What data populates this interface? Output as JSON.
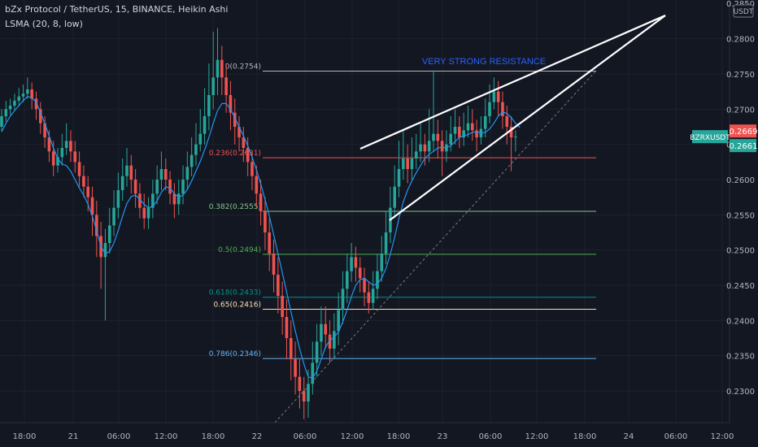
{
  "header": {
    "title": "bZx Protocol / TetherUS, 15, BINANCE, Heikin Ashi",
    "indicator": "LSMA (20, 8, low)"
  },
  "colors": {
    "background": "#131722",
    "grid": "#1e222d",
    "text": "#b2b5be",
    "up": "#26a69a",
    "down": "#ef5350",
    "lsma": "#2196f3",
    "trendline": "#ffffff",
    "annotation": "#2962ff",
    "current_price_badge": "#ef5350",
    "symbol_badge": "#26a69a"
  },
  "chart_data": {
    "type": "candlestick",
    "ylim": [
      0.2255,
      0.2855
    ],
    "currency_label": "USDT",
    "y_ticks": [
      0.23,
      0.235,
      0.24,
      0.245,
      0.25,
      0.255,
      0.26,
      0.265,
      0.27,
      0.275,
      0.28
    ],
    "top_tick": "0.2850",
    "x_ticks": [
      "18:00",
      "21",
      "06:00",
      "12:00",
      "18:00",
      "22",
      "06:00",
      "12:00",
      "18:00",
      "23",
      "06:00",
      "12:00",
      "18:00",
      "24",
      "06:00",
      "12:00"
    ],
    "fib_levels": [
      {
        "label": "0(0.2754)",
        "value": 0.2754,
        "color": "#b2b5be"
      },
      {
        "label": "0.236(0.2631)",
        "value": 0.2631,
        "color": "#ef5350"
      },
      {
        "label": "0.382(0.2555)",
        "value": 0.2555,
        "color": "#81c784"
      },
      {
        "label": "0.5(0.2494)",
        "value": 0.2494,
        "color": "#4caf50"
      },
      {
        "label": "0.618(0.2433)",
        "value": 0.2433,
        "color": "#009688"
      },
      {
        "label": "0.65(0.2416)",
        "value": 0.2416,
        "color": "#ffe0b2"
      },
      {
        "label": "0.786(0.2346)",
        "value": 0.2346,
        "color": "#64b5f6"
      }
    ],
    "annotation": "VERY STRONG RESISTANCE",
    "symbol": "BZRXUSDT",
    "last_price": "0.2661",
    "alt_price": "0.2669",
    "candles": [
      {
        "o": 0.2675,
        "c": 0.269,
        "h": 0.27,
        "l": 0.2668
      },
      {
        "o": 0.269,
        "c": 0.27,
        "h": 0.2712,
        "l": 0.2682
      },
      {
        "o": 0.27,
        "c": 0.2705,
        "h": 0.2715,
        "l": 0.2692
      },
      {
        "o": 0.2705,
        "c": 0.2712,
        "h": 0.2722,
        "l": 0.2698
      },
      {
        "o": 0.2712,
        "c": 0.2718,
        "h": 0.273,
        "l": 0.2704
      },
      {
        "o": 0.2718,
        "c": 0.2722,
        "h": 0.2735,
        "l": 0.271
      },
      {
        "o": 0.2722,
        "c": 0.2728,
        "h": 0.2745,
        "l": 0.2715
      },
      {
        "o": 0.2728,
        "c": 0.2715,
        "h": 0.2738,
        "l": 0.27
      },
      {
        "o": 0.2715,
        "c": 0.27,
        "h": 0.2725,
        "l": 0.2685
      },
      {
        "o": 0.27,
        "c": 0.268,
        "h": 0.271,
        "l": 0.2665
      },
      {
        "o": 0.268,
        "c": 0.266,
        "h": 0.269,
        "l": 0.2645
      },
      {
        "o": 0.266,
        "c": 0.264,
        "h": 0.267,
        "l": 0.2625
      },
      {
        "o": 0.264,
        "c": 0.262,
        "h": 0.2655,
        "l": 0.2605
      },
      {
        "o": 0.262,
        "c": 0.2632,
        "h": 0.2645,
        "l": 0.261
      },
      {
        "o": 0.2632,
        "c": 0.2645,
        "h": 0.2665,
        "l": 0.262
      },
      {
        "o": 0.2645,
        "c": 0.2655,
        "h": 0.268,
        "l": 0.2635
      },
      {
        "o": 0.2655,
        "c": 0.264,
        "h": 0.267,
        "l": 0.2625
      },
      {
        "o": 0.264,
        "c": 0.2625,
        "h": 0.2655,
        "l": 0.261
      },
      {
        "o": 0.2625,
        "c": 0.2605,
        "h": 0.264,
        "l": 0.259
      },
      {
        "o": 0.2605,
        "c": 0.259,
        "h": 0.262,
        "l": 0.2575
      },
      {
        "o": 0.259,
        "c": 0.2575,
        "h": 0.2605,
        "l": 0.2555
      },
      {
        "o": 0.2575,
        "c": 0.255,
        "h": 0.259,
        "l": 0.252
      },
      {
        "o": 0.255,
        "c": 0.252,
        "h": 0.257,
        "l": 0.249
      },
      {
        "o": 0.252,
        "c": 0.249,
        "h": 0.254,
        "l": 0.2445
      },
      {
        "o": 0.249,
        "c": 0.251,
        "h": 0.253,
        "l": 0.24
      },
      {
        "o": 0.251,
        "c": 0.2535,
        "h": 0.256,
        "l": 0.2495
      },
      {
        "o": 0.2535,
        "c": 0.256,
        "h": 0.2585,
        "l": 0.252
      },
      {
        "o": 0.256,
        "c": 0.2585,
        "h": 0.261,
        "l": 0.2545
      },
      {
        "o": 0.2585,
        "c": 0.2605,
        "h": 0.263,
        "l": 0.257
      },
      {
        "o": 0.2605,
        "c": 0.262,
        "h": 0.2645,
        "l": 0.259
      },
      {
        "o": 0.262,
        "c": 0.26,
        "h": 0.2635,
        "l": 0.258
      },
      {
        "o": 0.26,
        "c": 0.258,
        "h": 0.2615,
        "l": 0.256
      },
      {
        "o": 0.258,
        "c": 0.256,
        "h": 0.2595,
        "l": 0.2545
      },
      {
        "o": 0.256,
        "c": 0.2545,
        "h": 0.258,
        "l": 0.253
      },
      {
        "o": 0.2545,
        "c": 0.256,
        "h": 0.2575,
        "l": 0.253
      },
      {
        "o": 0.256,
        "c": 0.258,
        "h": 0.26,
        "l": 0.2545
      },
      {
        "o": 0.258,
        "c": 0.26,
        "h": 0.262,
        "l": 0.2565
      },
      {
        "o": 0.26,
        "c": 0.2615,
        "h": 0.264,
        "l": 0.2585
      },
      {
        "o": 0.2615,
        "c": 0.26,
        "h": 0.263,
        "l": 0.2585
      },
      {
        "o": 0.26,
        "c": 0.258,
        "h": 0.2612,
        "l": 0.2565
      },
      {
        "o": 0.258,
        "c": 0.2565,
        "h": 0.2595,
        "l": 0.2545
      },
      {
        "o": 0.2565,
        "c": 0.258,
        "h": 0.26,
        "l": 0.255
      },
      {
        "o": 0.258,
        "c": 0.26,
        "h": 0.262,
        "l": 0.2565
      },
      {
        "o": 0.26,
        "c": 0.2618,
        "h": 0.264,
        "l": 0.2585
      },
      {
        "o": 0.2618,
        "c": 0.2635,
        "h": 0.266,
        "l": 0.2605
      },
      {
        "o": 0.2635,
        "c": 0.265,
        "h": 0.268,
        "l": 0.262
      },
      {
        "o": 0.265,
        "c": 0.2665,
        "h": 0.27,
        "l": 0.264
      },
      {
        "o": 0.2665,
        "c": 0.269,
        "h": 0.273,
        "l": 0.265
      },
      {
        "o": 0.269,
        "c": 0.272,
        "h": 0.2765,
        "l": 0.267
      },
      {
        "o": 0.272,
        "c": 0.2745,
        "h": 0.281,
        "l": 0.27
      },
      {
        "o": 0.2745,
        "c": 0.277,
        "h": 0.2815,
        "l": 0.272
      },
      {
        "o": 0.277,
        "c": 0.2745,
        "h": 0.279,
        "l": 0.272
      },
      {
        "o": 0.2745,
        "c": 0.272,
        "h": 0.2765,
        "l": 0.2695
      },
      {
        "o": 0.272,
        "c": 0.2695,
        "h": 0.274,
        "l": 0.267
      },
      {
        "o": 0.2695,
        "c": 0.2675,
        "h": 0.2715,
        "l": 0.265
      },
      {
        "o": 0.2675,
        "c": 0.266,
        "h": 0.269,
        "l": 0.264
      },
      {
        "o": 0.266,
        "c": 0.2645,
        "h": 0.2675,
        "l": 0.2625
      },
      {
        "o": 0.2645,
        "c": 0.2625,
        "h": 0.266,
        "l": 0.2605
      },
      {
        "o": 0.2625,
        "c": 0.2605,
        "h": 0.264,
        "l": 0.2585
      },
      {
        "o": 0.2605,
        "c": 0.258,
        "h": 0.262,
        "l": 0.256
      },
      {
        "o": 0.258,
        "c": 0.2555,
        "h": 0.26,
        "l": 0.2535
      },
      {
        "o": 0.2555,
        "c": 0.2525,
        "h": 0.2575,
        "l": 0.25
      },
      {
        "o": 0.2525,
        "c": 0.2495,
        "h": 0.2545,
        "l": 0.247
      },
      {
        "o": 0.2495,
        "c": 0.2465,
        "h": 0.2515,
        "l": 0.244
      },
      {
        "o": 0.2465,
        "c": 0.2435,
        "h": 0.249,
        "l": 0.241
      },
      {
        "o": 0.2435,
        "c": 0.2405,
        "h": 0.2455,
        "l": 0.238
      },
      {
        "o": 0.2405,
        "c": 0.2375,
        "h": 0.243,
        "l": 0.2345
      },
      {
        "o": 0.2375,
        "c": 0.2345,
        "h": 0.24,
        "l": 0.2315
      },
      {
        "o": 0.2345,
        "c": 0.232,
        "h": 0.237,
        "l": 0.2295
      },
      {
        "o": 0.232,
        "c": 0.23,
        "h": 0.2345,
        "l": 0.2275
      },
      {
        "o": 0.23,
        "c": 0.2285,
        "h": 0.232,
        "l": 0.226
      },
      {
        "o": 0.2285,
        "c": 0.231,
        "h": 0.233,
        "l": 0.2262
      },
      {
        "o": 0.231,
        "c": 0.234,
        "h": 0.237,
        "l": 0.2295
      },
      {
        "o": 0.234,
        "c": 0.237,
        "h": 0.2395,
        "l": 0.232
      },
      {
        "o": 0.237,
        "c": 0.2395,
        "h": 0.242,
        "l": 0.235
      },
      {
        "o": 0.2395,
        "c": 0.238,
        "h": 0.242,
        "l": 0.236
      },
      {
        "o": 0.238,
        "c": 0.236,
        "h": 0.24,
        "l": 0.234
      },
      {
        "o": 0.236,
        "c": 0.2385,
        "h": 0.241,
        "l": 0.2345
      },
      {
        "o": 0.2385,
        "c": 0.2415,
        "h": 0.244,
        "l": 0.2365
      },
      {
        "o": 0.2415,
        "c": 0.2445,
        "h": 0.247,
        "l": 0.2395
      },
      {
        "o": 0.2445,
        "c": 0.247,
        "h": 0.2495,
        "l": 0.2425
      },
      {
        "o": 0.247,
        "c": 0.249,
        "h": 0.251,
        "l": 0.2455
      },
      {
        "o": 0.249,
        "c": 0.2475,
        "h": 0.2505,
        "l": 0.2455
      },
      {
        "o": 0.2475,
        "c": 0.246,
        "h": 0.249,
        "l": 0.244
      },
      {
        "o": 0.246,
        "c": 0.244,
        "h": 0.2475,
        "l": 0.242
      },
      {
        "o": 0.244,
        "c": 0.2425,
        "h": 0.2455,
        "l": 0.241
      },
      {
        "o": 0.2425,
        "c": 0.2445,
        "h": 0.247,
        "l": 0.2415
      },
      {
        "o": 0.2445,
        "c": 0.247,
        "h": 0.2495,
        "l": 0.243
      },
      {
        "o": 0.247,
        "c": 0.2495,
        "h": 0.252,
        "l": 0.2455
      },
      {
        "o": 0.2495,
        "c": 0.2525,
        "h": 0.2555,
        "l": 0.248
      },
      {
        "o": 0.2525,
        "c": 0.256,
        "h": 0.259,
        "l": 0.251
      },
      {
        "o": 0.256,
        "c": 0.259,
        "h": 0.262,
        "l": 0.2545
      },
      {
        "o": 0.259,
        "c": 0.2615,
        "h": 0.2655,
        "l": 0.2575
      },
      {
        "o": 0.2615,
        "c": 0.263,
        "h": 0.267,
        "l": 0.26
      },
      {
        "o": 0.263,
        "c": 0.2615,
        "h": 0.265,
        "l": 0.2595
      },
      {
        "o": 0.2615,
        "c": 0.263,
        "h": 0.266,
        "l": 0.26
      },
      {
        "o": 0.263,
        "c": 0.264,
        "h": 0.2665,
        "l": 0.2615
      },
      {
        "o": 0.264,
        "c": 0.265,
        "h": 0.268,
        "l": 0.2625
      },
      {
        "o": 0.265,
        "c": 0.264,
        "h": 0.2665,
        "l": 0.262
      },
      {
        "o": 0.264,
        "c": 0.2655,
        "h": 0.27,
        "l": 0.2625
      },
      {
        "o": 0.2655,
        "c": 0.2665,
        "h": 0.2755,
        "l": 0.264
      },
      {
        "o": 0.2665,
        "c": 0.2655,
        "h": 0.2685,
        "l": 0.263
      },
      {
        "o": 0.2655,
        "c": 0.264,
        "h": 0.267,
        "l": 0.2605
      },
      {
        "o": 0.264,
        "c": 0.265,
        "h": 0.267,
        "l": 0.2625
      },
      {
        "o": 0.265,
        "c": 0.2665,
        "h": 0.269,
        "l": 0.264
      },
      {
        "o": 0.2665,
        "c": 0.2675,
        "h": 0.27,
        "l": 0.265
      },
      {
        "o": 0.2675,
        "c": 0.266,
        "h": 0.269,
        "l": 0.2645
      },
      {
        "o": 0.266,
        "c": 0.267,
        "h": 0.2695,
        "l": 0.2648
      },
      {
        "o": 0.267,
        "c": 0.268,
        "h": 0.2705,
        "l": 0.266
      },
      {
        "o": 0.268,
        "c": 0.267,
        "h": 0.27,
        "l": 0.2655
      },
      {
        "o": 0.267,
        "c": 0.266,
        "h": 0.2685,
        "l": 0.264
      },
      {
        "o": 0.266,
        "c": 0.2672,
        "h": 0.269,
        "l": 0.265
      },
      {
        "o": 0.2672,
        "c": 0.269,
        "h": 0.2715,
        "l": 0.266
      },
      {
        "o": 0.269,
        "c": 0.271,
        "h": 0.2735,
        "l": 0.268
      },
      {
        "o": 0.271,
        "c": 0.2725,
        "h": 0.2745,
        "l": 0.27
      },
      {
        "o": 0.2725,
        "c": 0.271,
        "h": 0.274,
        "l": 0.269
      },
      {
        "o": 0.271,
        "c": 0.269,
        "h": 0.2725,
        "l": 0.2672
      },
      {
        "o": 0.269,
        "c": 0.2675,
        "h": 0.2705,
        "l": 0.265
      },
      {
        "o": 0.2675,
        "c": 0.266,
        "h": 0.269,
        "l": 0.2612
      },
      {
        "o": 0.266,
        "c": 0.2661,
        "h": 0.267,
        "l": 0.264
      }
    ],
    "lsma": [
      0.2668,
      0.268,
      0.269,
      0.2698,
      0.2705,
      0.2712,
      0.2718,
      0.2716,
      0.271,
      0.2695,
      0.268,
      0.2662,
      0.2645,
      0.263,
      0.2622,
      0.262,
      0.2612,
      0.26,
      0.2588,
      0.2578,
      0.2565,
      0.2548,
      0.2528,
      0.2505,
      0.2495,
      0.2498,
      0.251,
      0.2528,
      0.2548,
      0.2566,
      0.2576,
      0.2578,
      0.2572,
      0.2565,
      0.256,
      0.2562,
      0.257,
      0.2582,
      0.259,
      0.2588,
      0.258,
      0.2575,
      0.2578,
      0.2586,
      0.2598,
      0.2612,
      0.2626,
      0.2642,
      0.266,
      0.268,
      0.2698,
      0.2708,
      0.2708,
      0.27,
      0.2688,
      0.2675,
      0.2662,
      0.2648,
      0.2632,
      0.2614,
      0.2594,
      0.2572,
      0.2548,
      0.2522,
      0.2495,
      0.2468,
      0.244,
      0.2412,
      0.2385,
      0.236,
      0.2338,
      0.232,
      0.2318,
      0.2328,
      0.2345,
      0.2362,
      0.2372,
      0.2376,
      0.2384,
      0.2398,
      0.2415,
      0.2434,
      0.245,
      0.2458,
      0.246,
      0.2455,
      0.245,
      0.2452,
      0.246,
      0.2474,
      0.2494,
      0.2518,
      0.2545,
      0.2568,
      0.2585,
      0.2598,
      0.261,
      0.262,
      0.263,
      0.2636,
      0.264,
      0.2645,
      0.2646,
      0.2645,
      0.2648,
      0.2654,
      0.266,
      0.2662,
      0.2664,
      0.2667,
      0.2668,
      0.2666,
      0.2667,
      0.2672,
      0.268,
      0.269,
      0.2696,
      0.2694,
      0.2688,
      0.268,
      0.2674
    ]
  }
}
